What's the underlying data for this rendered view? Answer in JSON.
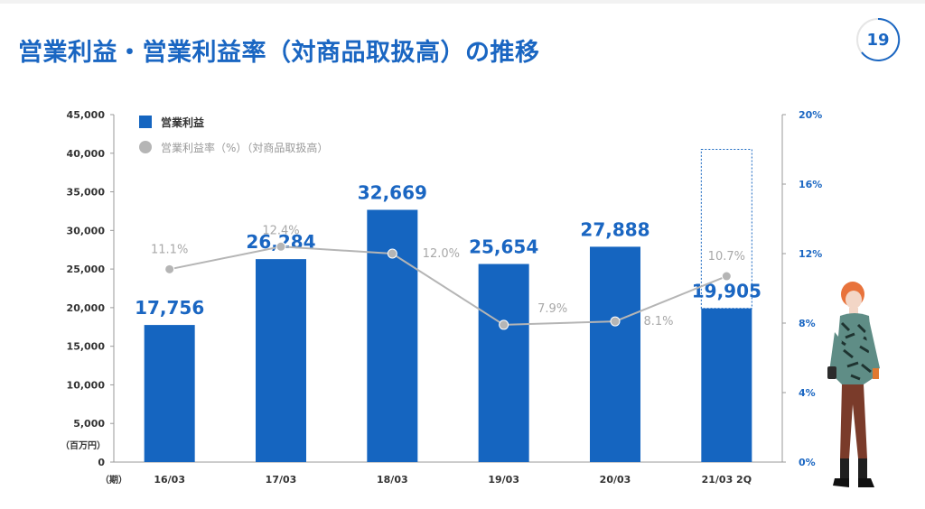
{
  "header": {
    "title": "営業利益・営業利益率（対商品取扱高）の推移",
    "page_number": "19"
  },
  "colors": {
    "accent": "#1a66c2",
    "bar": "#1565c0",
    "line": "#b5b5b5"
  },
  "chart_data": {
    "type": "bar",
    "categories": [
      "16/03",
      "17/03",
      "18/03",
      "19/03",
      "20/03",
      "21/03 2Q"
    ],
    "series": [
      {
        "name": "営業利益",
        "type": "bar",
        "axis": "left",
        "values": [
          17756,
          26284,
          32669,
          25654,
          27888,
          19905
        ],
        "labels": [
          "17,756",
          "26,284",
          "32,669",
          "25,654",
          "27,888",
          "19,905"
        ]
      },
      {
        "name": "営業利益率（%）（対商品取扱高）",
        "type": "line",
        "axis": "right",
        "values": [
          11.1,
          12.4,
          12.0,
          7.9,
          8.1,
          10.7
        ],
        "labels": [
          "11.1%",
          "12.4%",
          "12.0%",
          "7.9%",
          "8.1%",
          "10.7%"
        ]
      }
    ],
    "y_left": {
      "lim": [
        0,
        45000
      ],
      "ticks": [
        0,
        5000,
        10000,
        15000,
        20000,
        25000,
        30000,
        35000,
        40000,
        45000
      ],
      "tick_labels": [
        "0",
        "5,000",
        "10,000",
        "15,000",
        "20,000",
        "25,000",
        "30,000",
        "35,000",
        "40,000",
        "45,000"
      ],
      "unit": "（百万円）"
    },
    "y_right": {
      "lim": [
        0,
        20
      ],
      "ticks": [
        0,
        4,
        8,
        12,
        16,
        20
      ],
      "tick_labels": [
        "0%",
        "4%",
        "8%",
        "12%",
        "16%",
        "20%"
      ]
    },
    "x_unit": "（期）",
    "projection_box": {
      "category_index": 5,
      "upper_value": 40500
    },
    "legend_position": "top-left",
    "grid": false
  }
}
